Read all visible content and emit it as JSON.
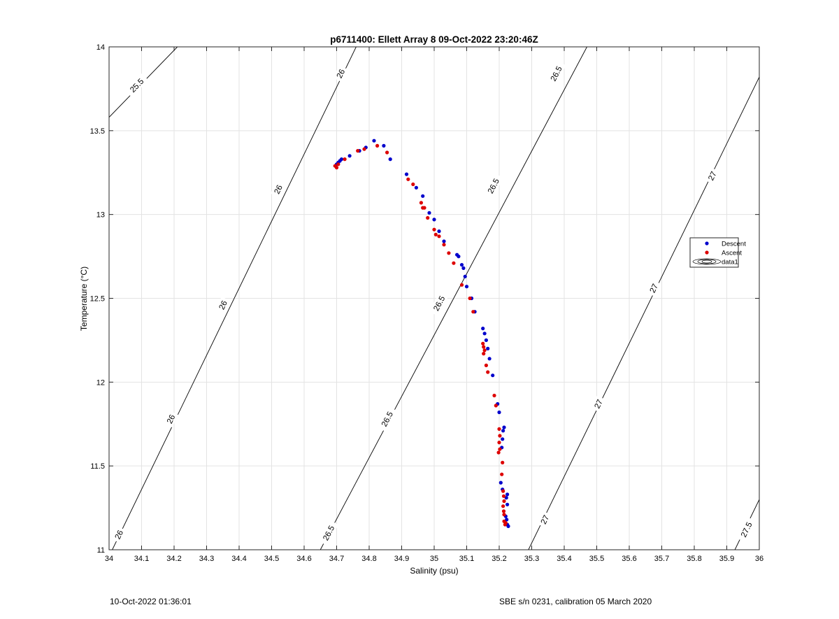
{
  "chart_data": {
    "type": "scatter",
    "title": "p6711400: Ellett Array 8 09-Oct-2022 23:20:46Z",
    "xlabel": "Salinity (psu)",
    "ylabel": "Temperature (°C)",
    "xlim": [
      34,
      36
    ],
    "ylim": [
      11,
      14
    ],
    "xticks": [
      "34",
      "34.1",
      "34.2",
      "34.3",
      "34.4",
      "34.5",
      "34.6",
      "34.7",
      "34.8",
      "34.9",
      "35",
      "35.1",
      "35.2",
      "35.3",
      "35.4",
      "35.5",
      "35.6",
      "35.7",
      "35.8",
      "35.9",
      "36"
    ],
    "yticks": [
      "11",
      "11.5",
      "12",
      "12.5",
      "13",
      "13.5",
      "14"
    ],
    "grid": true,
    "legend_position": "right",
    "legend": [
      {
        "name": "Descent",
        "color": "#0000cc",
        "marker": "dot"
      },
      {
        "name": "Ascent",
        "color": "#dd0000",
        "marker": "dot"
      },
      {
        "name": "data1",
        "color": "#000000",
        "marker": "contour"
      }
    ],
    "series": [
      {
        "name": "Descent",
        "color": "#0000cc",
        "points": [
          [
            34.7,
            13.3
          ],
          [
            34.705,
            13.31
          ],
          [
            34.71,
            13.32
          ],
          [
            34.715,
            13.33
          ],
          [
            34.74,
            13.35
          ],
          [
            34.77,
            13.38
          ],
          [
            34.79,
            13.4
          ],
          [
            34.815,
            13.44
          ],
          [
            34.845,
            13.41
          ],
          [
            34.865,
            13.33
          ],
          [
            34.915,
            13.24
          ],
          [
            34.945,
            13.16
          ],
          [
            34.965,
            13.11
          ],
          [
            34.985,
            13.01
          ],
          [
            35.0,
            12.97
          ],
          [
            35.015,
            12.9
          ],
          [
            35.03,
            12.84
          ],
          [
            35.07,
            12.76
          ],
          [
            35.075,
            12.75
          ],
          [
            35.085,
            12.7
          ],
          [
            35.09,
            12.68
          ],
          [
            35.095,
            12.63
          ],
          [
            35.1,
            12.57
          ],
          [
            35.115,
            12.5
          ],
          [
            35.125,
            12.42
          ],
          [
            35.15,
            12.32
          ],
          [
            35.155,
            12.29
          ],
          [
            35.16,
            12.25
          ],
          [
            35.165,
            12.2
          ],
          [
            35.17,
            12.14
          ],
          [
            35.18,
            12.04
          ],
          [
            35.195,
            11.87
          ],
          [
            35.2,
            11.82
          ],
          [
            35.215,
            11.73
          ],
          [
            35.212,
            11.71
          ],
          [
            35.21,
            11.66
          ],
          [
            35.208,
            11.61
          ],
          [
            35.205,
            11.4
          ],
          [
            35.21,
            11.36
          ],
          [
            35.225,
            11.33
          ],
          [
            35.222,
            11.31
          ],
          [
            35.225,
            11.27
          ],
          [
            35.22,
            11.2
          ],
          [
            35.223,
            11.18
          ],
          [
            35.225,
            11.15
          ],
          [
            35.228,
            11.14
          ]
        ]
      },
      {
        "name": "Ascent",
        "color": "#dd0000",
        "points": [
          [
            34.695,
            13.29
          ],
          [
            34.7,
            13.28
          ],
          [
            34.705,
            13.3
          ],
          [
            34.725,
            13.33
          ],
          [
            34.765,
            13.38
          ],
          [
            34.785,
            13.39
          ],
          [
            34.825,
            13.41
          ],
          [
            34.855,
            13.37
          ],
          [
            34.92,
            13.21
          ],
          [
            34.935,
            13.18
          ],
          [
            34.96,
            13.07
          ],
          [
            34.965,
            13.04
          ],
          [
            34.97,
            13.04
          ],
          [
            34.98,
            12.98
          ],
          [
            35.0,
            12.91
          ],
          [
            35.005,
            12.88
          ],
          [
            35.015,
            12.87
          ],
          [
            35.03,
            12.82
          ],
          [
            35.045,
            12.77
          ],
          [
            35.06,
            12.71
          ],
          [
            35.085,
            12.58
          ],
          [
            35.11,
            12.5
          ],
          [
            35.12,
            12.42
          ],
          [
            35.15,
            12.23
          ],
          [
            35.152,
            12.21
          ],
          [
            35.155,
            12.19
          ],
          [
            35.152,
            12.17
          ],
          [
            35.16,
            12.1
          ],
          [
            35.165,
            12.06
          ],
          [
            35.185,
            11.92
          ],
          [
            35.19,
            11.86
          ],
          [
            35.2,
            11.72
          ],
          [
            35.202,
            11.68
          ],
          [
            35.2,
            11.64
          ],
          [
            35.202,
            11.6
          ],
          [
            35.198,
            11.58
          ],
          [
            35.21,
            11.52
          ],
          [
            35.208,
            11.45
          ],
          [
            35.212,
            11.35
          ],
          [
            35.214,
            11.32
          ],
          [
            35.215,
            11.29
          ],
          [
            35.212,
            11.26
          ],
          [
            35.214,
            11.23
          ],
          [
            35.215,
            11.21
          ],
          [
            35.215,
            11.17
          ],
          [
            35.22,
            11.16
          ],
          [
            35.218,
            11.15
          ]
        ]
      }
    ],
    "contours": [
      {
        "level": "25.5",
        "path": [
          [
            34.0,
            13.58
          ],
          [
            34.21,
            14.0
          ]
        ],
        "labels": [
          {
            "text": "25.5",
            "x": 34.085,
            "y": 13.77
          }
        ]
      },
      {
        "level": "26",
        "path": [
          [
            34.01,
            11.0
          ],
          [
            34.76,
            14.0
          ]
        ],
        "labels": [
          {
            "text": "26",
            "x": 34.03,
            "y": 11.09
          },
          {
            "text": "26",
            "x": 34.19,
            "y": 11.78
          },
          {
            "text": "26",
            "x": 34.35,
            "y": 12.46
          },
          {
            "text": "26",
            "x": 34.52,
            "y": 13.15
          },
          {
            "text": "26",
            "x": 34.712,
            "y": 13.84
          }
        ]
      },
      {
        "level": "26.5",
        "path": [
          [
            34.65,
            11.0
          ],
          [
            35.47,
            14.0
          ]
        ],
        "labels": [
          {
            "text": "26.5",
            "x": 34.675,
            "y": 11.1
          },
          {
            "text": "26.5",
            "x": 34.855,
            "y": 11.78
          },
          {
            "text": "26.5",
            "x": 35.015,
            "y": 12.47
          },
          {
            "text": "26.5",
            "x": 35.182,
            "y": 13.17
          },
          {
            "text": "26.5",
            "x": 35.375,
            "y": 13.84
          }
        ]
      },
      {
        "level": "27",
        "path": [
          [
            35.29,
            11.0
          ],
          [
            36.0,
            13.82
          ]
        ],
        "labels": [
          {
            "text": "27",
            "x": 35.34,
            "y": 11.18
          },
          {
            "text": "27",
            "x": 35.505,
            "y": 11.87
          },
          {
            "text": "27",
            "x": 35.675,
            "y": 12.56
          },
          {
            "text": "27",
            "x": 35.855,
            "y": 13.23
          }
        ]
      },
      {
        "level": "27.5",
        "path": [
          [
            35.925,
            11.0
          ],
          [
            36.0,
            11.3
          ]
        ],
        "labels": [
          {
            "text": "27.5",
            "x": 35.96,
            "y": 11.12
          }
        ]
      }
    ]
  },
  "footer": {
    "left": "10-Oct-2022 01:36:01",
    "right": "SBE s/n 0231, calibration 05 March 2020"
  }
}
